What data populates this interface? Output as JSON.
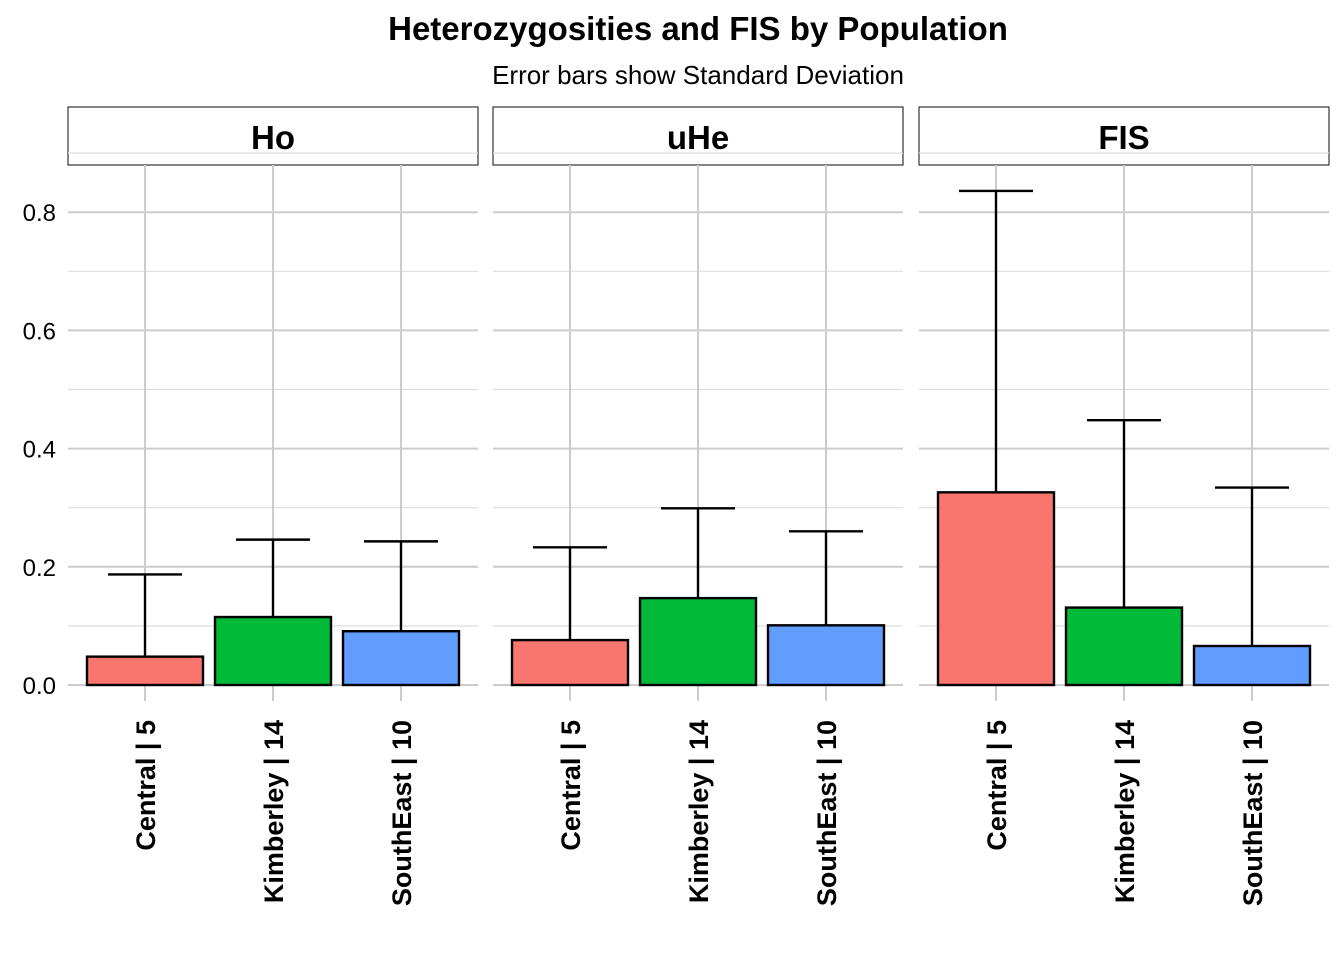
{
  "chart_data": {
    "type": "bar",
    "title": "Heterozygosities and FIS by Population",
    "subtitle": "Error bars show Standard Deviation",
    "panels": [
      "Ho",
      "uHe",
      "FIS"
    ],
    "categories": [
      "Central | 5",
      "Kimberley | 14",
      "SouthEast | 10"
    ],
    "colors": [
      "#F8766D",
      "#00BA38",
      "#619CFF"
    ],
    "series": [
      {
        "panel": "Ho",
        "values": [
          0.048,
          0.115,
          0.091
        ],
        "sd_upper": [
          0.187,
          0.246,
          0.243
        ]
      },
      {
        "panel": "uHe",
        "values": [
          0.076,
          0.147,
          0.101
        ],
        "sd_upper": [
          0.233,
          0.299,
          0.26
        ]
      },
      {
        "panel": "FIS",
        "values": [
          0.326,
          0.131,
          0.066
        ],
        "sd_upper": [
          0.836,
          0.448,
          0.334
        ]
      }
    ],
    "ylim": [
      0,
      0.9
    ],
    "yticks": [
      0.0,
      0.2,
      0.4,
      0.6,
      0.8
    ],
    "ytick_labels": [
      "0.0",
      "0.2",
      "0.4",
      "0.6",
      "0.8"
    ],
    "grid": true
  }
}
